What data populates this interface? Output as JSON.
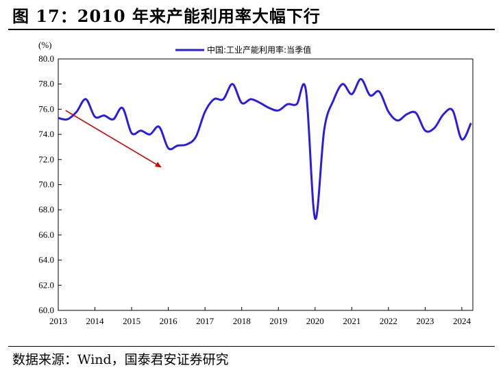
{
  "title": "图 17：2010 年来产能利用率大幅下行",
  "source": "数据来源：Wind，国泰君安证券研究",
  "chart_data": {
    "type": "line",
    "y_unit": "(%)",
    "ylim": [
      60,
      80
    ],
    "y_ticks": [
      "80.0",
      "78.0",
      "76.0",
      "74.0",
      "72.0",
      "70.0",
      "68.0",
      "66.0",
      "64.0",
      "62.0",
      "60.0"
    ],
    "xlim": [
      2013,
      2024.3
    ],
    "x_ticks": [
      "2013",
      "2014",
      "2015",
      "2016",
      "2017",
      "2018",
      "2019",
      "2020",
      "2021",
      "2022",
      "2023",
      "2024"
    ],
    "grid": false,
    "legend_position": "top",
    "series": [
      {
        "name": "中国:工业产能利用率:当季值",
        "color": "#2B1BE6",
        "points": [
          [
            2013.0,
            75.3
          ],
          [
            2013.25,
            75.2
          ],
          [
            2013.5,
            75.8
          ],
          [
            2013.75,
            76.8
          ],
          [
            2014.0,
            75.4
          ],
          [
            2014.25,
            75.5
          ],
          [
            2014.5,
            75.2
          ],
          [
            2014.75,
            76.1
          ],
          [
            2015.0,
            74.1
          ],
          [
            2015.25,
            74.3
          ],
          [
            2015.5,
            74.0
          ],
          [
            2015.75,
            74.6
          ],
          [
            2016.0,
            72.9
          ],
          [
            2016.25,
            73.1
          ],
          [
            2016.5,
            73.2
          ],
          [
            2016.75,
            73.8
          ],
          [
            2017.0,
            75.8
          ],
          [
            2017.25,
            76.8
          ],
          [
            2017.5,
            76.8
          ],
          [
            2017.75,
            78.0
          ],
          [
            2018.0,
            76.5
          ],
          [
            2018.25,
            76.8
          ],
          [
            2018.5,
            76.5
          ],
          [
            2018.75,
            76.1
          ],
          [
            2019.0,
            75.9
          ],
          [
            2019.25,
            76.4
          ],
          [
            2019.5,
            76.4
          ],
          [
            2019.75,
            77.5
          ],
          [
            2020.0,
            67.3
          ],
          [
            2020.25,
            74.4
          ],
          [
            2020.5,
            76.7
          ],
          [
            2020.75,
            78.0
          ],
          [
            2021.0,
            77.2
          ],
          [
            2021.25,
            78.4
          ],
          [
            2021.5,
            77.1
          ],
          [
            2021.75,
            77.4
          ],
          [
            2022.0,
            75.8
          ],
          [
            2022.25,
            75.1
          ],
          [
            2022.5,
            75.6
          ],
          [
            2022.75,
            75.7
          ],
          [
            2023.0,
            74.3
          ],
          [
            2023.25,
            74.5
          ],
          [
            2023.5,
            75.6
          ],
          [
            2023.75,
            75.9
          ],
          [
            2024.0,
            73.6
          ],
          [
            2024.25,
            74.9
          ]
        ]
      }
    ],
    "annotations": [
      {
        "type": "arrow",
        "color": "#D40000",
        "from": [
          2013.2,
          75.9
        ],
        "to": [
          2015.8,
          71.4
        ]
      }
    ]
  }
}
